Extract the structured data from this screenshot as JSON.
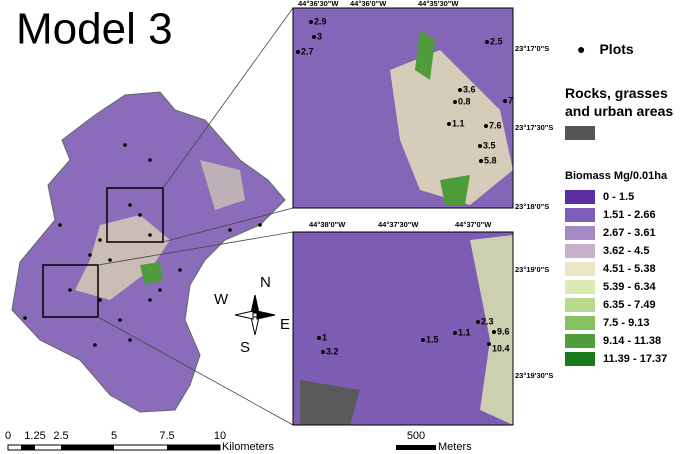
{
  "title": "Model 3",
  "inset_top": {
    "lon_labels": [
      "44°36'30\"W",
      "44°36'0\"W",
      "44°35'30\"W"
    ],
    "lat_labels": [
      "23°17'0\"S",
      "23°17'30\"S",
      "23°18'0\"S"
    ],
    "plots": [
      "3",
      "2.9",
      "2.7",
      "2.5",
      "3.6",
      "0.8",
      "7",
      "1.1",
      "7.6",
      "3.5",
      "5.8"
    ]
  },
  "inset_bottom": {
    "lon_labels": [
      "44°38'0\"W",
      "44°37'30\"W",
      "44°37'0\"W"
    ],
    "lat_labels": [
      "23°19'0\"S",
      "23°19'30\"S"
    ],
    "plots": [
      "1",
      "3.2",
      "1.5",
      "1.1",
      "2.3",
      "9.6",
      "10.4"
    ]
  },
  "legend": {
    "plots": "Plots",
    "rocks": "Rocks, grasses and urban areas",
    "rocks_color": "#555555",
    "biomass_title": "Biomass Mg/0.01ha",
    "classes": [
      {
        "label": "0 - 1.5",
        "color": "#5b2ea3"
      },
      {
        "label": "1.51 - 2.66",
        "color": "#7d5db7"
      },
      {
        "label": "2.67 - 3.61",
        "color": "#a68ac6"
      },
      {
        "label": "3.62 - 4.5",
        "color": "#c9b1cc"
      },
      {
        "label": "4.51 - 5.38",
        "color": "#ece5c6"
      },
      {
        "label": "5.39 - 6.34",
        "color": "#dbe9b3"
      },
      {
        "label": "6.35 - 7.49",
        "color": "#b6d98b"
      },
      {
        "label": "7.5 - 9.13",
        "color": "#86c162"
      },
      {
        "label": "9.14 - 11.38",
        "color": "#4f9d3a"
      },
      {
        "label": "11.39 - 17.37",
        "color": "#1b7a1b"
      }
    ]
  },
  "compass": {
    "n": "N",
    "e": "E",
    "s": "S",
    "w": "W"
  },
  "scale_km": {
    "ticks": [
      "0",
      "1.25",
      "2.5",
      "5",
      "7.5",
      "10"
    ],
    "unit": "Kilometers"
  },
  "scale_m": {
    "ticks": [
      "500"
    ],
    "unit": "Meters"
  }
}
